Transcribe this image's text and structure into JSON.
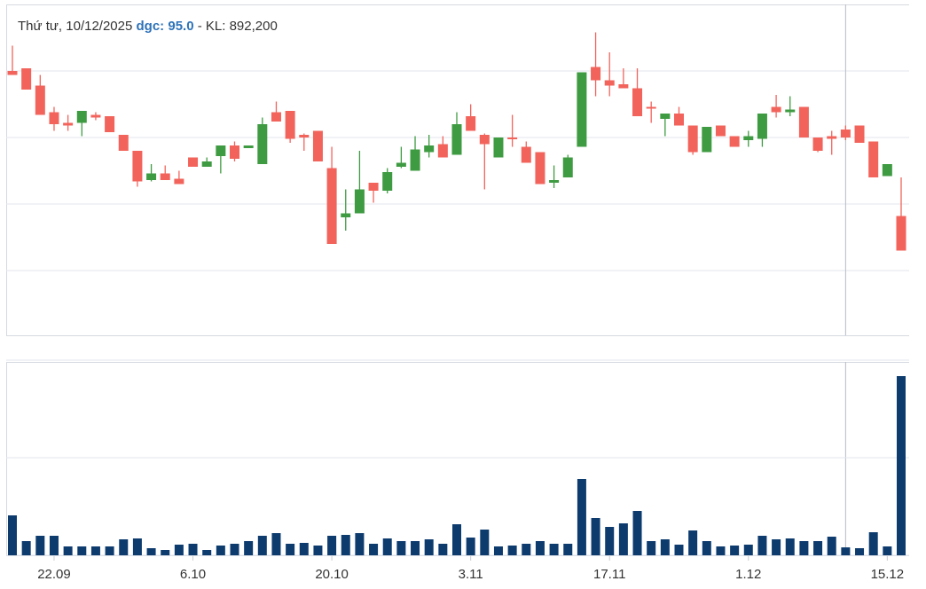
{
  "tooltip": {
    "date": "Thứ tư, 10/12/2025",
    "price": "dgc: 95.0",
    "volume": "- KL: 892,200"
  },
  "chart_data": [
    {
      "type": "candlestick",
      "up_color": "#3f9b42",
      "down_color": "#f2635b",
      "crosshair_index": 60,
      "ylim": [
        80,
        105
      ],
      "yticks": [
        85,
        90,
        95,
        100
      ],
      "grid": true,
      "open": [
        100,
        100.2,
        98.9,
        96.9,
        96.1,
        96.1,
        96.7,
        96.6,
        95.2,
        94,
        91.8,
        92.3,
        91.9,
        93.5,
        92.8,
        93.6,
        94.4,
        94.2,
        93,
        96.9,
        97,
        95.2,
        95.5,
        92.7,
        89,
        89.3,
        91.6,
        91,
        92.8,
        92.5,
        93.9,
        94.5,
        93.7,
        96.6,
        95.2,
        93.5,
        95,
        94.3,
        93.9,
        91.6,
        92,
        94.3,
        100.3,
        99.3,
        99,
        98.7,
        97.3,
        96.4,
        96.8,
        95.9,
        93.9,
        95.9,
        95.1,
        94.8,
        94.9,
        97.3,
        96.9,
        97.3,
        95,
        95.1,
        95.6,
        95.9,
        94.7,
        92.1,
        89.1
      ],
      "high": [
        101.9,
        100.2,
        99.7,
        97.3,
        96.7,
        97,
        96.9,
        96.6,
        95.2,
        94,
        93,
        92.9,
        92.5,
        93.5,
        93.5,
        94.4,
        94.7,
        94.4,
        96.5,
        97.7,
        97,
        95.3,
        95.5,
        94.3,
        91.1,
        94,
        91.6,
        92.7,
        94.3,
        95.1,
        95.2,
        95.1,
        96.9,
        97.5,
        95.3,
        95,
        96.7,
        94.7,
        93.9,
        92.9,
        93.7,
        99.9,
        102.9,
        101.4,
        100.2,
        100.2,
        97.7,
        96.8,
        97.3,
        95.9,
        95.8,
        95.9,
        95.1,
        95.5,
        96.8,
        98.2,
        98.1,
        97.3,
        95,
        95.5,
        95.9,
        95.9,
        94.7,
        93,
        92
      ],
      "low": [
        99.7,
        98.6,
        96.7,
        95.5,
        95.5,
        95.1,
        96.3,
        95.4,
        94,
        91.3,
        91.7,
        91.8,
        91.5,
        92.8,
        92.8,
        92.3,
        93.2,
        94.2,
        93,
        96.2,
        94.6,
        94,
        93.2,
        87,
        88,
        89.3,
        90.1,
        90.8,
        92.7,
        92.5,
        93.5,
        93.5,
        93.7,
        95.5,
        91.1,
        93.5,
        94.3,
        93.1,
        91.5,
        91.2,
        92,
        94.3,
        98.1,
        98.1,
        98.7,
        96.6,
        96.1,
        95.1,
        95.9,
        93.7,
        93.9,
        95.1,
        94.3,
        94.3,
        94.3,
        96.5,
        96.6,
        95,
        93.9,
        93.7,
        94.8,
        94.6,
        92,
        92.1,
        86.5
      ],
      "close": [
        99.7,
        98.6,
        96.7,
        96,
        95.9,
        97,
        96.5,
        95.4,
        94,
        91.7,
        92.3,
        91.8,
        91.5,
        92.8,
        93.2,
        94.4,
        93.4,
        94.4,
        96,
        96.2,
        94.9,
        95,
        93.2,
        87,
        89.3,
        91.1,
        91,
        92.4,
        93.1,
        94.1,
        94.4,
        93.5,
        96,
        95.5,
        94.5,
        95,
        94.9,
        93.1,
        91.5,
        91.8,
        93.5,
        99.9,
        99.3,
        98.9,
        98.7,
        96.6,
        97.2,
        96.8,
        95.9,
        93.9,
        95.8,
        95.1,
        94.3,
        95.1,
        96.8,
        96.9,
        97.1,
        95,
        94,
        94.9,
        95,
        94.6,
        92,
        93,
        86.5
      ]
    },
    {
      "type": "bar",
      "color": "#0d3b6e",
      "ylim": [
        0,
        22000000
      ],
      "yticks": [
        0,
        11000000,
        22000000
      ],
      "grid": true,
      "categories": [
        null,
        null,
        null,
        "22.09",
        null,
        null,
        null,
        null,
        null,
        null,
        null,
        null,
        null,
        "6.10",
        null,
        null,
        null,
        null,
        null,
        null,
        null,
        null,
        null,
        "20.10",
        null,
        null,
        null,
        null,
        null,
        null,
        null,
        null,
        null,
        "3.11",
        null,
        null,
        null,
        null,
        null,
        null,
        null,
        null,
        null,
        "17.11",
        null,
        null,
        null,
        null,
        null,
        null,
        null,
        null,
        null,
        "1.12",
        null,
        null,
        null,
        null,
        null,
        null,
        null,
        null,
        null,
        "15.12",
        null
      ],
      "values": [
        4500000,
        1600000,
        2200000,
        2200000,
        1000000,
        1000000,
        1000000,
        1000000,
        1800000,
        1900000,
        800000,
        600000,
        1200000,
        1300000,
        600000,
        1100000,
        1300000,
        1600000,
        2200000,
        2500000,
        1300000,
        1400000,
        1100000,
        2200000,
        2300000,
        2500000,
        1300000,
        1900000,
        1600000,
        1600000,
        1800000,
        1300000,
        3500000,
        2000000,
        2900000,
        1000000,
        1100000,
        1300000,
        1600000,
        1300000,
        1300000,
        8600000,
        4200000,
        3200000,
        3600000,
        5000000,
        1600000,
        1800000,
        1200000,
        2800000,
        1600000,
        1000000,
        1100000,
        1200000,
        2200000,
        1800000,
        1900000,
        1600000,
        1600000,
        2100000,
        892200,
        800000,
        2600000,
        1000000,
        20200000
      ]
    }
  ]
}
